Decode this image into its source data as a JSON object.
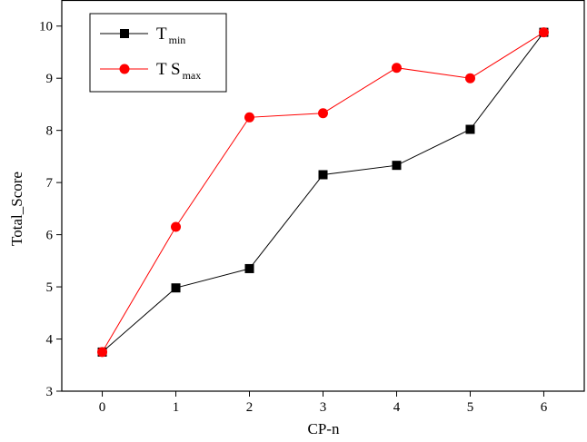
{
  "chart_data": {
    "type": "line",
    "xlabel": "CP-n",
    "ylabel": "Total_Score",
    "x": [
      0,
      1,
      2,
      3,
      4,
      5,
      6
    ],
    "xlim": [
      -0.55,
      6.55
    ],
    "ylim": [
      3,
      10.5
    ],
    "x_ticks": [
      0,
      1,
      2,
      3,
      4,
      5,
      6
    ],
    "y_ticks": [
      3,
      4,
      5,
      6,
      7,
      8,
      9,
      10
    ],
    "grid": false,
    "legend_position": "top-left",
    "series": [
      {
        "name_main": "T",
        "name_sub": "min",
        "color": "#000000",
        "marker": "square",
        "values": [
          3.75,
          4.98,
          5.35,
          7.15,
          7.33,
          8.02,
          9.88
        ]
      },
      {
        "name_main": "T S",
        "name_sub": "max",
        "color": "#ff0000",
        "marker": "circle",
        "values": [
          3.75,
          6.15,
          8.25,
          8.33,
          9.2,
          9.0,
          9.88
        ]
      }
    ]
  }
}
